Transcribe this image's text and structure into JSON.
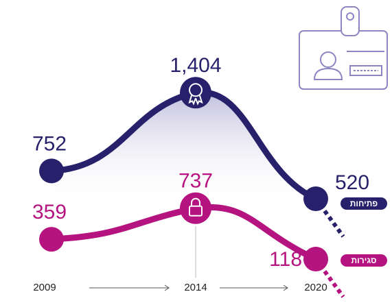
{
  "chart_data": {
    "type": "line",
    "categories": [
      "2009",
      "2014",
      "2020"
    ],
    "series": [
      {
        "name": "פתיחות",
        "color": "#27216b",
        "values": [
          752,
          1404,
          520
        ],
        "value_labels": [
          "752",
          "1,404",
          "520"
        ]
      },
      {
        "name": "סגירות",
        "color": "#b5137f",
        "values": [
          359,
          737,
          118
        ],
        "value_labels": [
          "359",
          "737",
          "118"
        ]
      }
    ]
  }
}
